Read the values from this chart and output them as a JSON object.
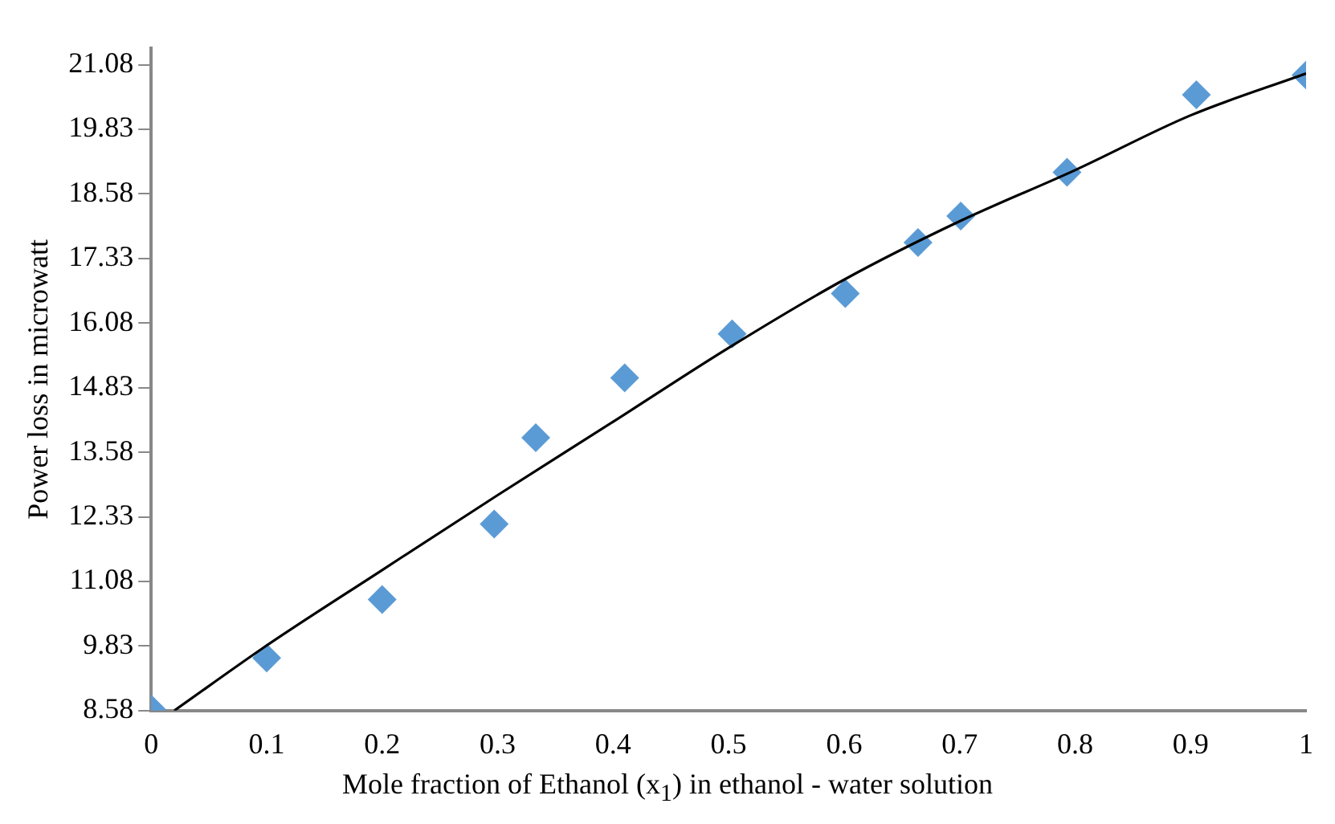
{
  "chart_data": {
    "type": "scatter",
    "xlabel": "Mole fraction of Ethanol  (x$_{1}$)  in ethanol - water solution",
    "ylabel": "Power loss in microwatt",
    "xlim": [
      0,
      1
    ],
    "xticks": [
      0,
      0.1,
      0.2,
      0.3,
      0.4,
      0.5,
      0.6,
      0.7,
      0.8,
      0.9,
      1
    ],
    "ylim": [
      8.58,
      21.4
    ],
    "yticks": [
      8.58,
      9.83,
      11.08,
      12.33,
      13.58,
      14.83,
      16.08,
      17.33,
      18.58,
      19.83,
      21.08
    ],
    "grid": false,
    "legend": false,
    "marker": "diamond",
    "series": [
      {
        "color": "#5b9bd5",
        "x": [
          0,
          0.1,
          0.2,
          0.297,
          0.333,
          0.41,
          0.503,
          0.601,
          0.664,
          0.701,
          0.793,
          0.905,
          1
        ],
        "values": [
          8.61,
          9.6,
          10.73,
          12.19,
          13.86,
          15.02,
          15.87,
          16.65,
          17.64,
          18.15,
          19.0,
          20.5,
          20.88
        ]
      },
      {
        "type": "line",
        "color": "#000000",
        "marker": "none",
        "x": [
          0.02,
          0.1,
          0.2,
          0.3,
          0.4,
          0.5,
          0.6,
          0.7,
          0.8,
          0.9,
          1
        ],
        "values": [
          8.58,
          9.84,
          11.3,
          12.75,
          14.17,
          15.6,
          16.92,
          18.05,
          19.04,
          20.1,
          20.91
        ]
      }
    ]
  }
}
